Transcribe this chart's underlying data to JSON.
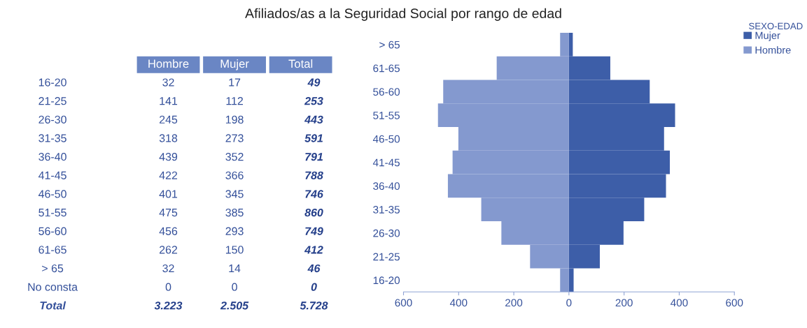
{
  "chart_data": [
    {
      "type": "other",
      "title": "Afiliados/as a la Seguridad Social por rango de edad",
      "categories": [
        "16-20",
        "21-25",
        "26-30",
        "31-35",
        "36-40",
        "41-45",
        "46-50",
        "51-55",
        "56-60",
        "61-65",
        "> 65",
        "No consta"
      ],
      "series": [
        {
          "name": "Hombre",
          "values": [
            32,
            141,
            245,
            318,
            439,
            422,
            401,
            475,
            456,
            262,
            32,
            0
          ]
        },
        {
          "name": "Mujer",
          "values": [
            17,
            112,
            198,
            273,
            352,
            366,
            345,
            385,
            293,
            150,
            14,
            0
          ]
        },
        {
          "name": "Total",
          "values": [
            49,
            253,
            443,
            591,
            791,
            788,
            746,
            860,
            749,
            412,
            46,
            0
          ]
        }
      ],
      "data_labels": true,
      "totals": [
        "3.223",
        "2.505",
        "5.728"
      ],
      "annotations": [
        "Total"
      ]
    },
    {
      "type": "bar",
      "orientation": "horizontal",
      "categories": [
        "> 65",
        "61-65",
        "56-60",
        "51-55",
        "46-50",
        "41-45",
        "36-40",
        "31-35",
        "26-30",
        "21-25",
        "16-20"
      ],
      "series": [
        {
          "name": "Mujer",
          "color": "#3d5ea8",
          "values": [
            14,
            150,
            293,
            385,
            345,
            366,
            352,
            273,
            198,
            112,
            17
          ]
        },
        {
          "name": "Hombre",
          "color": "#8499cf",
          "values": [
            -32,
            -262,
            -456,
            -475,
            -401,
            -422,
            -439,
            -318,
            -245,
            -141,
            -32
          ]
        }
      ],
      "xlim": [
        -600,
        600
      ],
      "xticks": [
        {
          "value": -600,
          "label": "600"
        },
        {
          "value": -400,
          "label": "400"
        },
        {
          "value": -200,
          "label": "200"
        },
        0,
        200,
        400,
        600
      ],
      "legend": "top right",
      "grid": false,
      "stacked": true,
      "annotations": [
        "SEXO-EDAD"
      ]
    }
  ]
}
